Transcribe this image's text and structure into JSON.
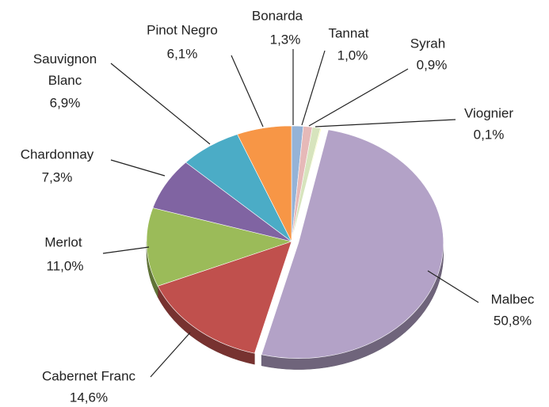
{
  "chart_data": {
    "type": "pie",
    "categories": [
      "Bonarda",
      "Tannat",
      "Syrah",
      "Viognier",
      "Malbec",
      "Cabernet Franc",
      "Merlot",
      "Chardonnay",
      "Sauvignon Blanc",
      "Pinot Negro"
    ],
    "values": [
      1.3,
      1.0,
      0.9,
      0.1,
      50.8,
      14.6,
      11.0,
      7.3,
      6.9,
      6.1
    ],
    "value_labels": [
      "1,3%",
      "1,0%",
      "0,9%",
      "0,1%",
      "50,8%",
      "14,6%",
      "11,0%",
      "7,3%",
      "6,9%",
      "6,1%"
    ],
    "colors": [
      "#95b3d7",
      "#e6b9b8",
      "#d7e4bd",
      "#ffff99",
      "#b3a2c7",
      "#c0504d",
      "#9bbb59",
      "#8064a2",
      "#4bacc6",
      "#f79646"
    ]
  }
}
